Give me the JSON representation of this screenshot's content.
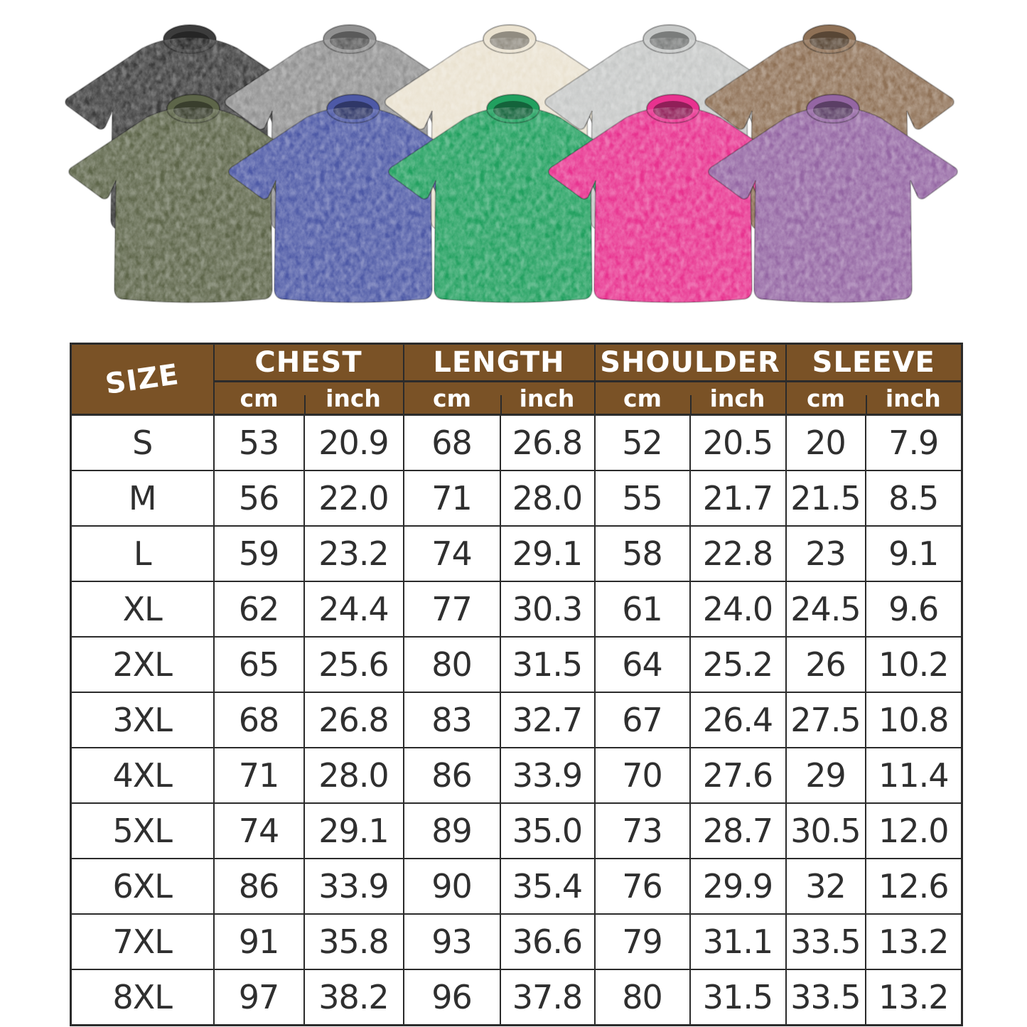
{
  "page": {
    "background": "#ffffff"
  },
  "product_gallery": {
    "description": "washed oversized t-shirt color options",
    "shirts": [
      {
        "name": "black",
        "hex": "#3c3c3c",
        "row": "back"
      },
      {
        "name": "dark-gray",
        "hex": "#919191",
        "row": "back"
      },
      {
        "name": "beige",
        "hex": "#eae2d0",
        "row": "back"
      },
      {
        "name": "light-gray",
        "hex": "#c6c8c7",
        "row": "back"
      },
      {
        "name": "brown",
        "hex": "#8f7156",
        "row": "back"
      },
      {
        "name": "army-green",
        "hex": "#5d6549",
        "row": "front"
      },
      {
        "name": "blue",
        "hex": "#4d59a6",
        "row": "front"
      },
      {
        "name": "green",
        "hex": "#21a05f",
        "row": "front"
      },
      {
        "name": "rose-pink",
        "hex": "#e8328f",
        "row": "front"
      },
      {
        "name": "purple",
        "hex": "#9466a3",
        "row": "front"
      }
    ]
  },
  "size_chart": {
    "colors": {
      "header_bg": "#7a5226",
      "header_text": "#ffffff",
      "grid_line": "#2b2b2b",
      "cell_text": "#2f2f2f",
      "cell_bg": "#ffffff"
    },
    "header": {
      "size_label": "SIZE",
      "groups": [
        {
          "label": "CHEST"
        },
        {
          "label": "LENGTH"
        },
        {
          "label": "SHOULDER"
        },
        {
          "label": "SLEEVE"
        }
      ],
      "unit_cm": "cm",
      "unit_inch": "inch"
    },
    "columns": [
      "size",
      "chest_cm",
      "chest_inch",
      "length_cm",
      "length_inch",
      "shoulder_cm",
      "shoulder_inch",
      "sleeve_cm",
      "sleeve_inch"
    ],
    "rows": [
      {
        "size": "S",
        "chest_cm": "53",
        "chest_inch": "20.9",
        "length_cm": "68",
        "length_inch": "26.8",
        "shoulder_cm": "52",
        "shoulder_inch": "20.5",
        "sleeve_cm": "20",
        "sleeve_inch": "7.9"
      },
      {
        "size": "M",
        "chest_cm": "56",
        "chest_inch": "22.0",
        "length_cm": "71",
        "length_inch": "28.0",
        "shoulder_cm": "55",
        "shoulder_inch": "21.7",
        "sleeve_cm": "21.5",
        "sleeve_inch": "8.5"
      },
      {
        "size": "L",
        "chest_cm": "59",
        "chest_inch": "23.2",
        "length_cm": "74",
        "length_inch": "29.1",
        "shoulder_cm": "58",
        "shoulder_inch": "22.8",
        "sleeve_cm": "23",
        "sleeve_inch": "9.1"
      },
      {
        "size": "XL",
        "chest_cm": "62",
        "chest_inch": "24.4",
        "length_cm": "77",
        "length_inch": "30.3",
        "shoulder_cm": "61",
        "shoulder_inch": "24.0",
        "sleeve_cm": "24.5",
        "sleeve_inch": "9.6"
      },
      {
        "size": "2XL",
        "chest_cm": "65",
        "chest_inch": "25.6",
        "length_cm": "80",
        "length_inch": "31.5",
        "shoulder_cm": "64",
        "shoulder_inch": "25.2",
        "sleeve_cm": "26",
        "sleeve_inch": "10.2"
      },
      {
        "size": "3XL",
        "chest_cm": "68",
        "chest_inch": "26.8",
        "length_cm": "83",
        "length_inch": "32.7",
        "shoulder_cm": "67",
        "shoulder_inch": "26.4",
        "sleeve_cm": "27.5",
        "sleeve_inch": "10.8"
      },
      {
        "size": "4XL",
        "chest_cm": "71",
        "chest_inch": "28.0",
        "length_cm": "86",
        "length_inch": "33.9",
        "shoulder_cm": "70",
        "shoulder_inch": "27.6",
        "sleeve_cm": "29",
        "sleeve_inch": "11.4"
      },
      {
        "size": "5XL",
        "chest_cm": "74",
        "chest_inch": "29.1",
        "length_cm": "89",
        "length_inch": "35.0",
        "shoulder_cm": "73",
        "shoulder_inch": "28.7",
        "sleeve_cm": "30.5",
        "sleeve_inch": "12.0"
      },
      {
        "size": "6XL",
        "chest_cm": "86",
        "chest_inch": "33.9",
        "length_cm": "90",
        "length_inch": "35.4",
        "shoulder_cm": "76",
        "shoulder_inch": "29.9",
        "sleeve_cm": "32",
        "sleeve_inch": "12.6"
      },
      {
        "size": "7XL",
        "chest_cm": "91",
        "chest_inch": "35.8",
        "length_cm": "93",
        "length_inch": "36.6",
        "shoulder_cm": "79",
        "shoulder_inch": "31.1",
        "sleeve_cm": "33.5",
        "sleeve_inch": "13.2"
      },
      {
        "size": "8XL",
        "chest_cm": "97",
        "chest_inch": "38.2",
        "length_cm": "96",
        "length_inch": "37.8",
        "shoulder_cm": "80",
        "shoulder_inch": "31.5",
        "sleeve_cm": "33.5",
        "sleeve_inch": "13.2"
      }
    ]
  }
}
